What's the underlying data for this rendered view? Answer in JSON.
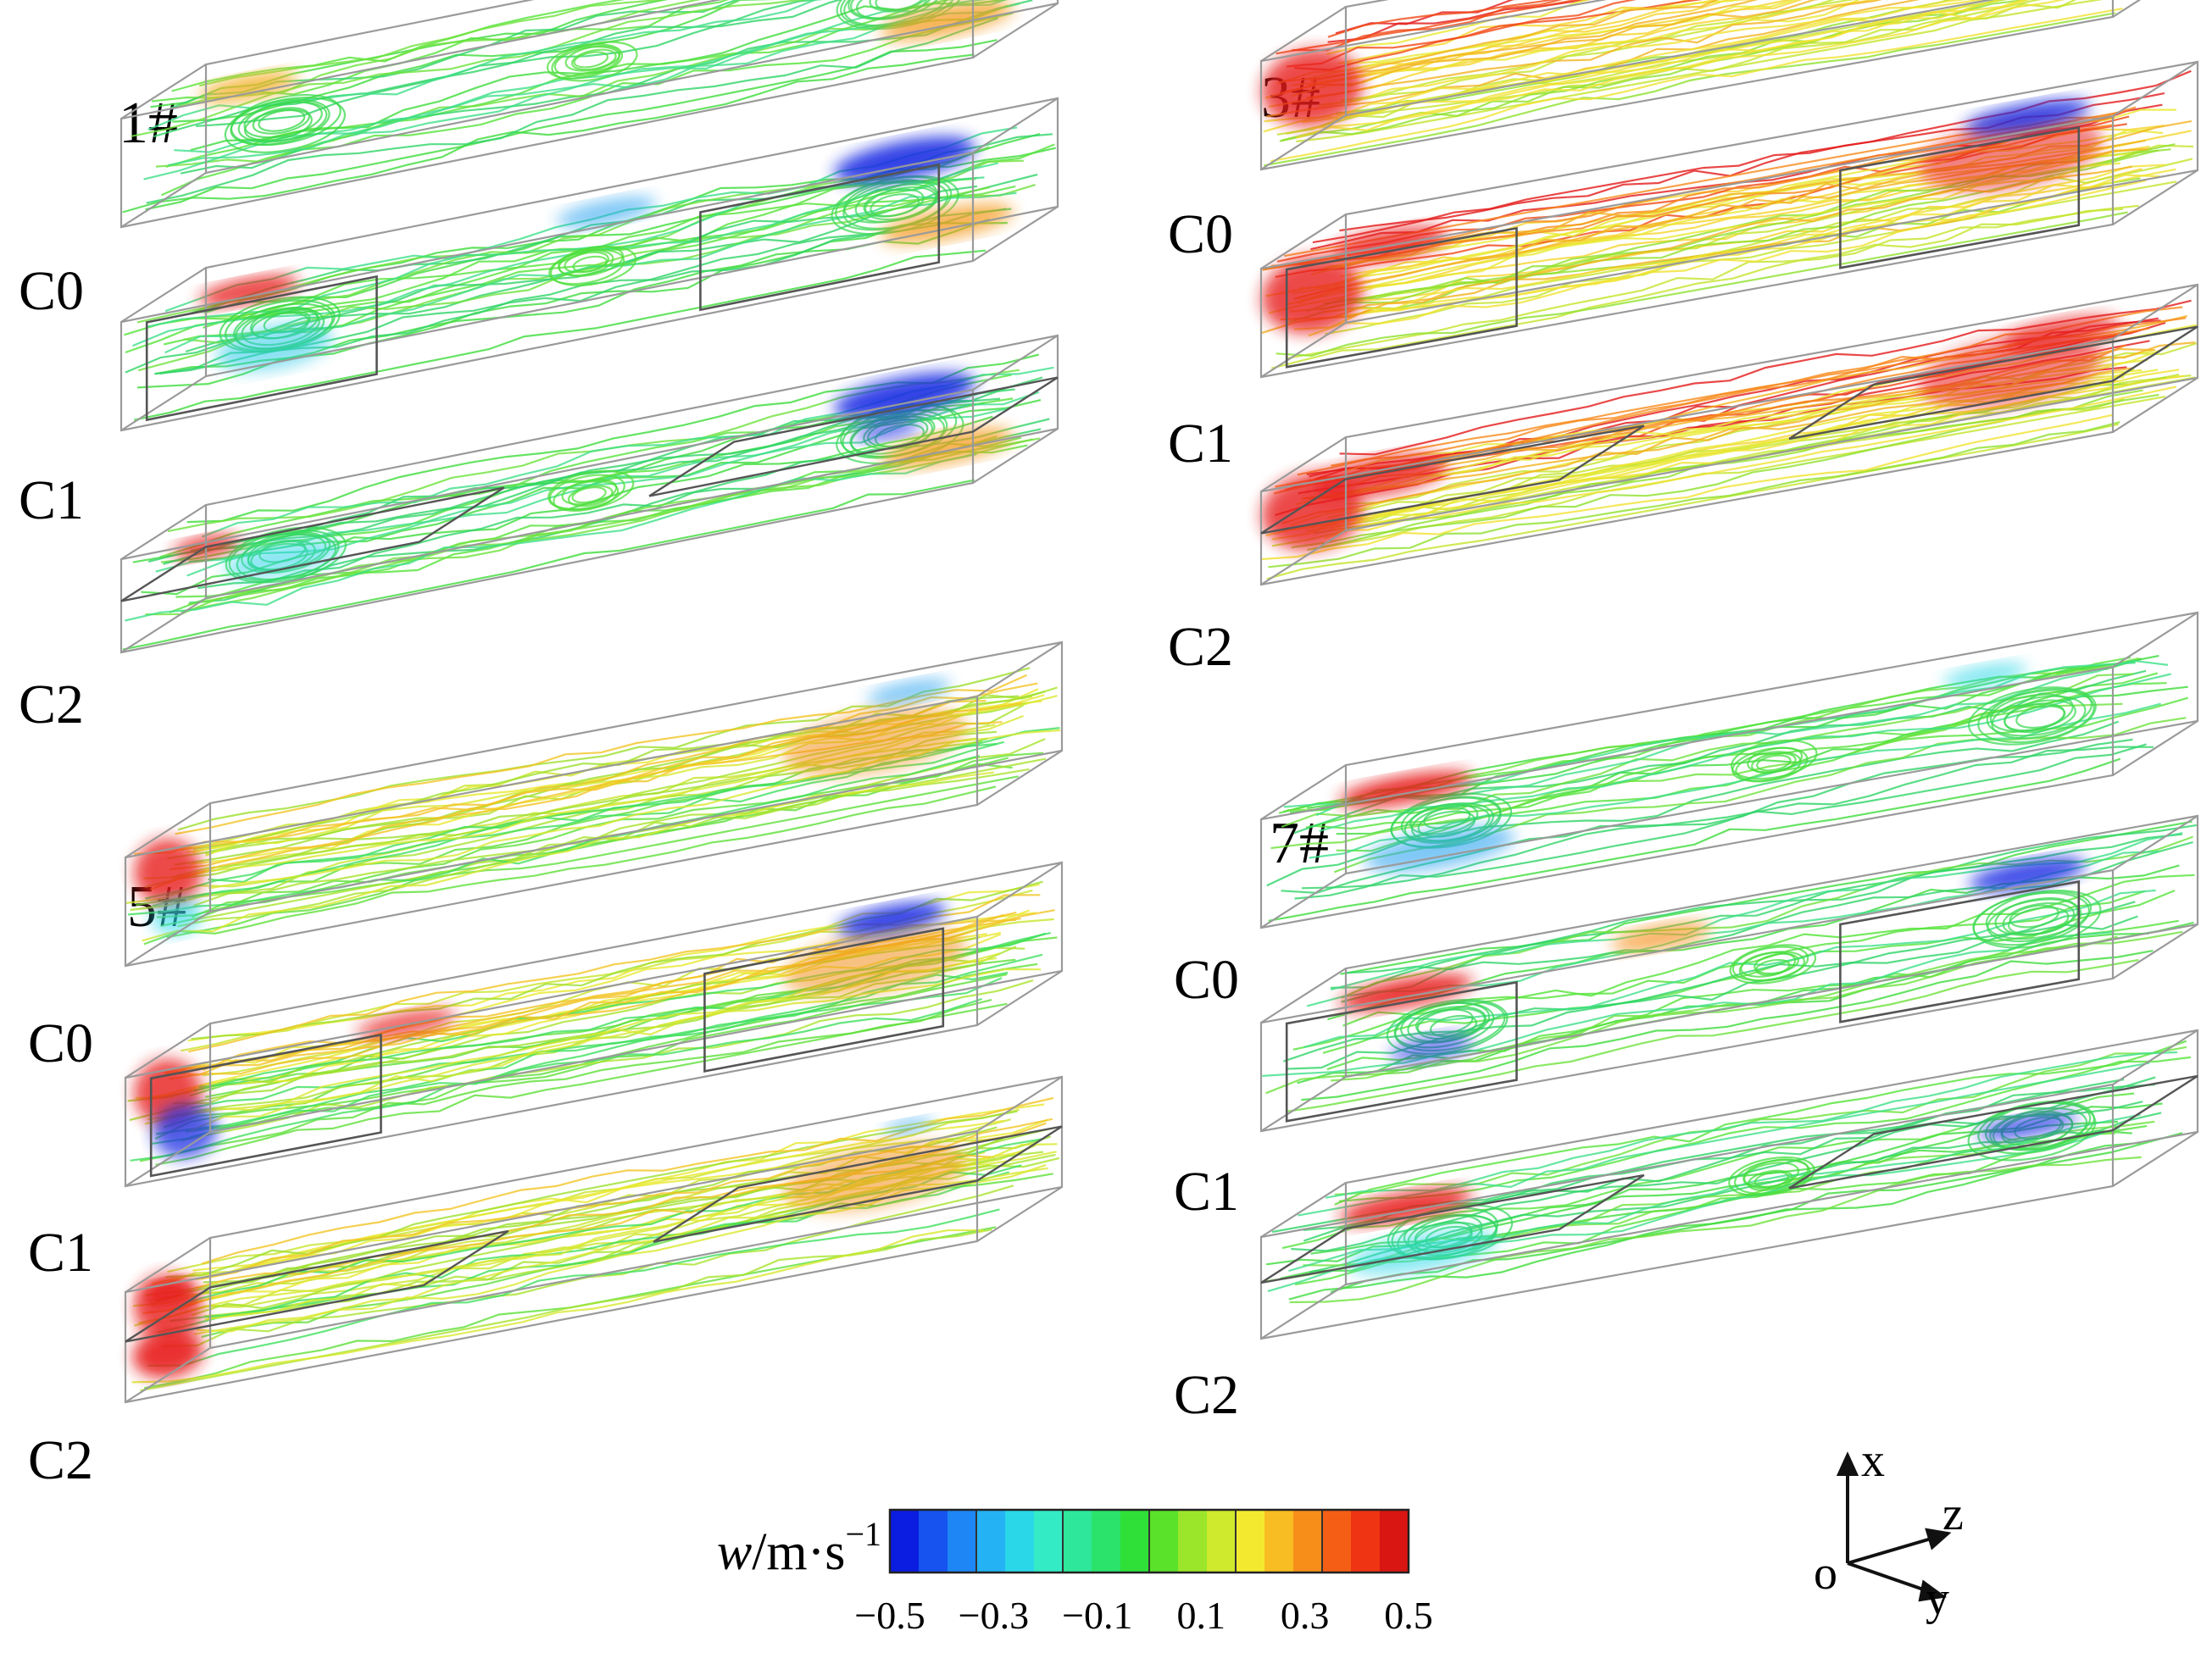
{
  "panels": [
    {
      "title": "1#",
      "cases": [
        "C0",
        "C1",
        "C2"
      ]
    },
    {
      "title": "3#",
      "cases": [
        "C0",
        "C1",
        "C2"
      ]
    },
    {
      "title": "5#",
      "cases": [
        "C0",
        "C1",
        "C2"
      ]
    },
    {
      "title": "7#",
      "cases": [
        "C0",
        "C1",
        "C2"
      ]
    }
  ],
  "colorbar": {
    "label_var": "w",
    "label_unit": "/m·s",
    "label_exp": "−1",
    "ticks": [
      "−0.5",
      "−0.3",
      "−0.1",
      "0.1",
      "0.3",
      "0.5"
    ],
    "colors": [
      "#0a1de0",
      "#1653ef",
      "#1e86f5",
      "#24b2f4",
      "#2ad7e8",
      "#33ecc6",
      "#2ee79a",
      "#2be36a",
      "#2fe038",
      "#5ae12a",
      "#9be62a",
      "#cfe92d",
      "#f3ea2f",
      "#f7bd22",
      "#f78e1a",
      "#f45f15",
      "#ee3413",
      "#d91612"
    ]
  },
  "axes": {
    "x": "x",
    "y": "y",
    "z": "z",
    "origin": "o"
  },
  "colors": {
    "wall": "#9a9a9a",
    "inner": "#555555",
    "pos": "#e81e1e",
    "neg": "#1d2fe3",
    "mid": "#3ee04a"
  }
}
